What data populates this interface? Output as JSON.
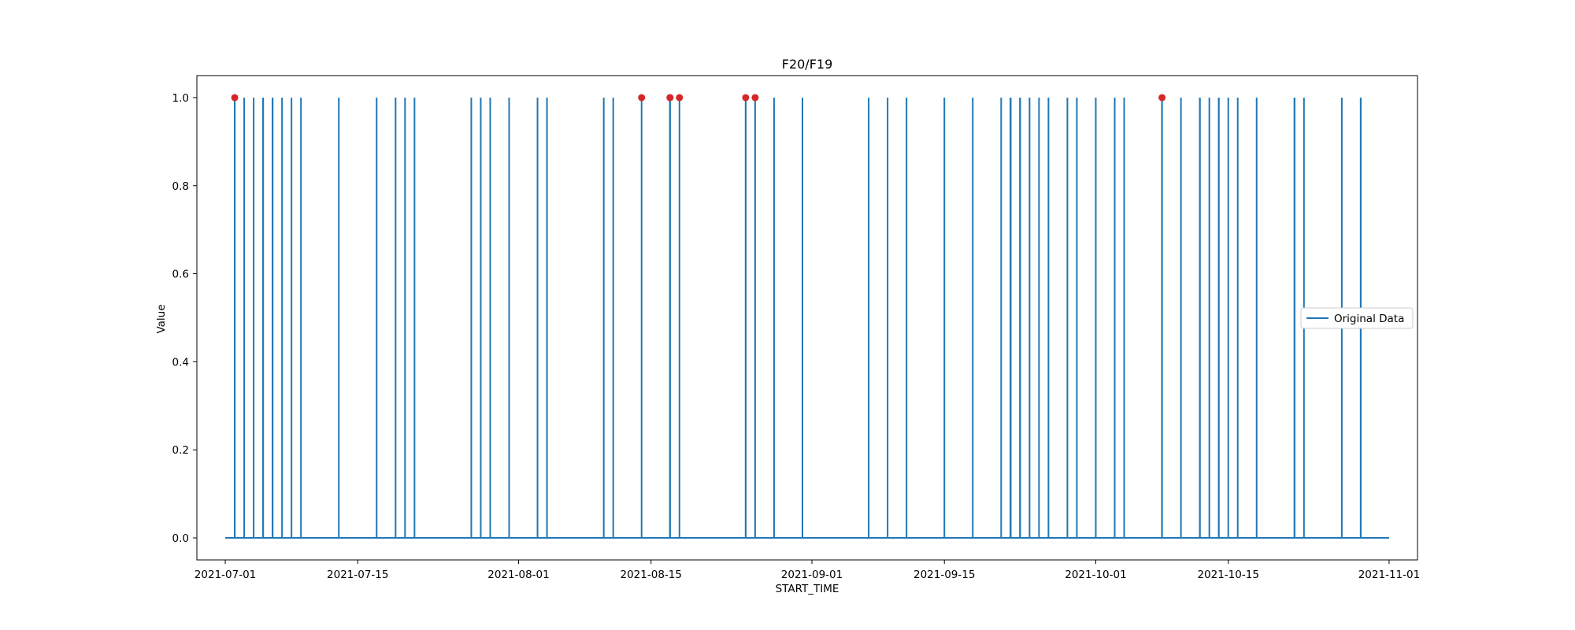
{
  "chart_data": {
    "type": "line",
    "title": "F20/F19",
    "xlabel": "START_TIME",
    "ylabel": "Value",
    "x_type": "date",
    "xlim": [
      "2021-06-28",
      "2021-11-04"
    ],
    "ylim": [
      -0.05,
      1.05
    ],
    "x_ticks": [
      "2021-07-01",
      "2021-07-15",
      "2021-08-01",
      "2021-08-15",
      "2021-09-01",
      "2021-09-15",
      "2021-10-01",
      "2021-10-15",
      "2021-11-01"
    ],
    "y_ticks": [
      0.0,
      0.2,
      0.4,
      0.6,
      0.8,
      1.0
    ],
    "y_tick_labels": [
      "0.0",
      "0.2",
      "0.4",
      "0.6",
      "0.8",
      "1.0"
    ],
    "grid": false,
    "legend": {
      "position": "center-right",
      "entries": [
        "Original Data"
      ]
    },
    "series": [
      {
        "name": "Original Data",
        "color": "#1f77b4",
        "baseline": 0,
        "spike_value": 1,
        "range": [
          "2021-07-01",
          "2021-11-01"
        ],
        "spike_dates": [
          "2021-07-02",
          "2021-07-02",
          "2021-07-03",
          "2021-07-04",
          "2021-07-05",
          "2021-07-05",
          "2021-07-06",
          "2021-07-06",
          "2021-07-07",
          "2021-07-08",
          "2021-07-09",
          "2021-07-13",
          "2021-07-17",
          "2021-07-19",
          "2021-07-20",
          "2021-07-21",
          "2021-07-27",
          "2021-07-28",
          "2021-07-29",
          "2021-07-31",
          "2021-08-03",
          "2021-08-04",
          "2021-08-10",
          "2021-08-11",
          "2021-08-14",
          "2021-08-17",
          "2021-08-17",
          "2021-08-18",
          "2021-08-25",
          "2021-08-25",
          "2021-08-26",
          "2021-08-28",
          "2021-08-31",
          "2021-09-07",
          "2021-09-09",
          "2021-09-11",
          "2021-09-15",
          "2021-09-18",
          "2021-09-21",
          "2021-09-22",
          "2021-09-22",
          "2021-09-22",
          "2021-09-22",
          "2021-09-22",
          "2021-09-23",
          "2021-09-23",
          "2021-09-23",
          "2021-09-24",
          "2021-09-25",
          "2021-09-26",
          "2021-09-28",
          "2021-09-29",
          "2021-10-01",
          "2021-10-03",
          "2021-10-04",
          "2021-10-08",
          "2021-10-08",
          "2021-10-10",
          "2021-10-12",
          "2021-10-12",
          "2021-10-13",
          "2021-10-14",
          "2021-10-14",
          "2021-10-15",
          "2021-10-16",
          "2021-10-18",
          "2021-10-22",
          "2021-10-22",
          "2021-10-23",
          "2021-10-27",
          "2021-10-29",
          "2021-10-29"
        ]
      }
    ],
    "highlight_points": {
      "color": "#d62728",
      "y": 1,
      "x": [
        "2021-07-02",
        "2021-08-14",
        "2021-08-17",
        "2021-08-17",
        "2021-08-18",
        "2021-08-25",
        "2021-08-26",
        "2021-10-08"
      ]
    }
  }
}
